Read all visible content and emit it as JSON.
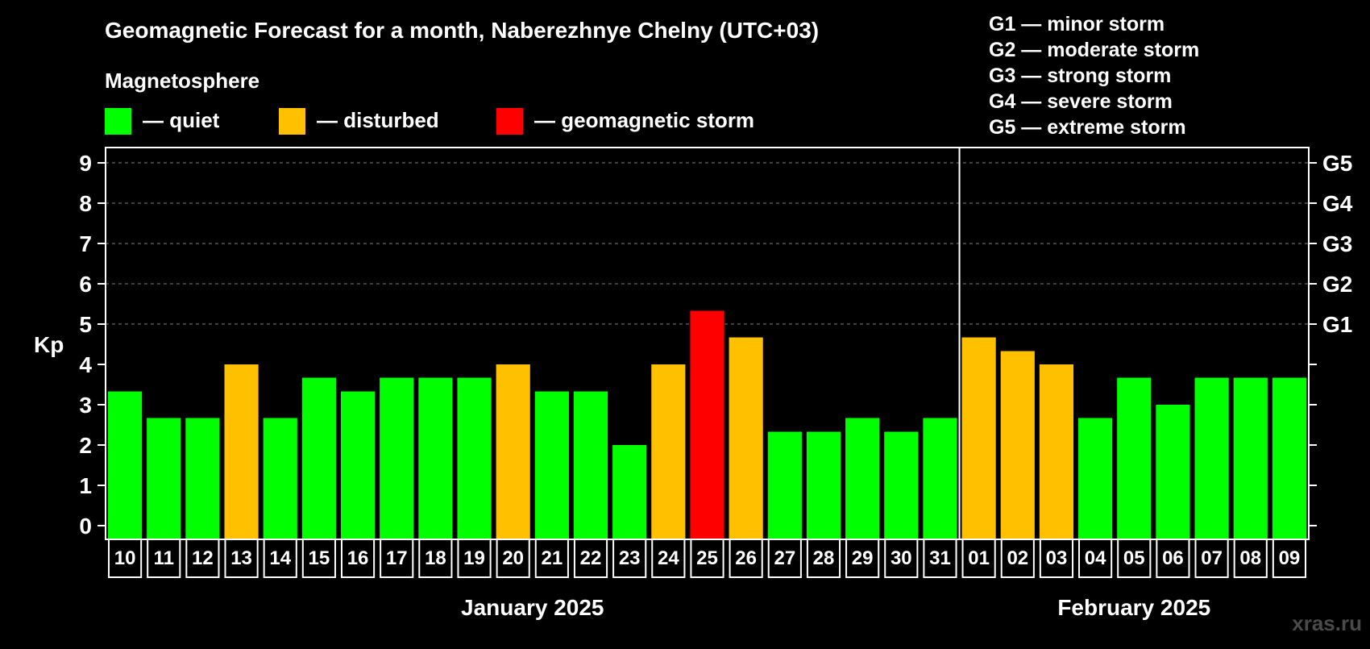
{
  "title": "Geomagnetic Forecast for a month, Naberezhnye Chelny (UTC+03)",
  "legend_heading": "Magnetosphere",
  "legend": [
    {
      "key": "quiet",
      "label": "— quiet",
      "color": "#00ff00"
    },
    {
      "key": "disturbed",
      "label": "— disturbed",
      "color": "#ffc000"
    },
    {
      "key": "storm",
      "label": "— geomagnetic storm",
      "color": "#ff0000"
    }
  ],
  "storm_scale": [
    "G1 — minor storm",
    "G2 — moderate storm",
    "G3 — strong storm",
    "G4 — severe storm",
    "G5 — extreme storm"
  ],
  "watermark": "xras.ru",
  "colors": {
    "background": "#000000",
    "axis": "#ffffff",
    "grid": "#808080",
    "text": "#ffffff"
  },
  "chart_data": {
    "type": "bar",
    "title": "Geomagnetic Forecast for a month, Naberezhnye Chelny (UTC+03)",
    "ylabel": "Kp",
    "ylim": [
      0,
      9
    ],
    "yticks": [
      "0",
      "1",
      "2",
      "3",
      "4",
      "5",
      "6",
      "7",
      "8",
      "9"
    ],
    "right_axis_labels": [
      {
        "kp": 5,
        "label": "G1"
      },
      {
        "kp": 6,
        "label": "G2"
      },
      {
        "kp": 7,
        "label": "G3"
      },
      {
        "kp": 8,
        "label": "G4"
      },
      {
        "kp": 9,
        "label": "G5"
      }
    ],
    "grid": "horizontal dashed at Kp 5–9",
    "categories": [
      "10",
      "11",
      "12",
      "13",
      "14",
      "15",
      "16",
      "17",
      "18",
      "19",
      "20",
      "21",
      "22",
      "23",
      "24",
      "25",
      "26",
      "27",
      "28",
      "29",
      "30",
      "31",
      "01",
      "02",
      "03",
      "04",
      "05",
      "06",
      "07",
      "08",
      "09"
    ],
    "values": [
      3.33,
      2.67,
      2.67,
      4.0,
      2.67,
      3.67,
      3.33,
      3.67,
      3.67,
      3.67,
      4.0,
      3.33,
      3.33,
      2.0,
      4.0,
      5.33,
      4.67,
      2.33,
      2.33,
      2.67,
      2.33,
      2.67,
      4.67,
      4.33,
      4.0,
      2.67,
      3.67,
      3.0,
      3.67,
      3.67,
      3.67
    ],
    "levels": [
      "quiet",
      "quiet",
      "quiet",
      "disturbed",
      "quiet",
      "quiet",
      "quiet",
      "quiet",
      "quiet",
      "quiet",
      "disturbed",
      "quiet",
      "quiet",
      "quiet",
      "disturbed",
      "storm",
      "disturbed",
      "quiet",
      "quiet",
      "quiet",
      "quiet",
      "quiet",
      "disturbed",
      "disturbed",
      "disturbed",
      "quiet",
      "quiet",
      "quiet",
      "quiet",
      "quiet",
      "quiet"
    ],
    "months": [
      {
        "label": "January 2025",
        "start_index": 0,
        "end_index": 21
      },
      {
        "label": "February 2025",
        "start_index": 22,
        "end_index": 30
      }
    ]
  }
}
